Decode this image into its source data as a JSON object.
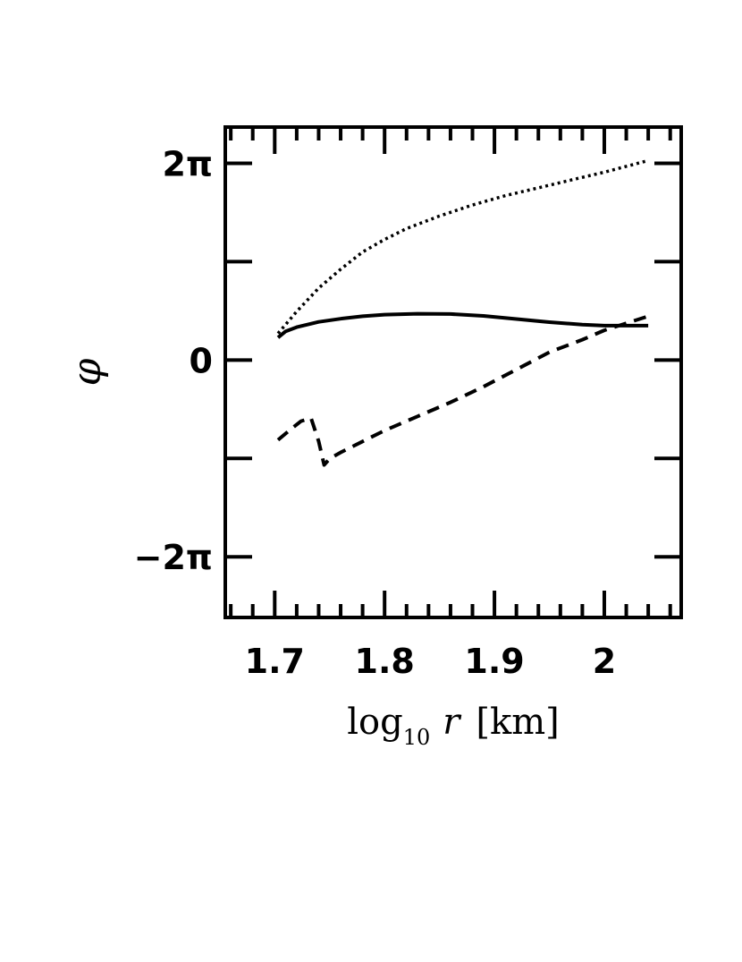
{
  "chart_data": {
    "type": "line",
    "xlabel": {
      "prefix": "log",
      "subscript": "10",
      "variable": "r",
      "unit": "[km]"
    },
    "ylabel": "φ",
    "xlim": [
      1.655,
      2.07
    ],
    "ylim": [
      -8.22,
      7.44
    ],
    "x_ticks": [
      {
        "value": 1.7,
        "label": "1.7"
      },
      {
        "value": 1.8,
        "label": "1.8"
      },
      {
        "value": 1.9,
        "label": "1.9"
      },
      {
        "value": 2.0,
        "label": "2"
      }
    ],
    "y_ticks": [
      {
        "value": -6.2832,
        "label": "−2π"
      },
      {
        "value": -3.1416,
        "label": ""
      },
      {
        "value": 0,
        "label": "0"
      },
      {
        "value": 3.1416,
        "label": ""
      },
      {
        "value": 6.2832,
        "label": "2π"
      }
    ],
    "series": [
      {
        "style": "dotted",
        "x": [
          1.703,
          1.72,
          1.74,
          1.76,
          1.78,
          1.8,
          1.82,
          1.85,
          1.88,
          1.91,
          1.94,
          1.97,
          2.0,
          2.04
        ],
        "y": [
          0.85,
          1.55,
          2.3,
          2.9,
          3.45,
          3.85,
          4.2,
          4.6,
          4.95,
          5.25,
          5.5,
          5.75,
          6.0,
          6.37
        ]
      },
      {
        "style": "solid",
        "x": [
          1.703,
          1.71,
          1.72,
          1.74,
          1.76,
          1.78,
          1.8,
          1.83,
          1.86,
          1.89,
          1.92,
          1.95,
          1.98,
          2.0,
          2.04
        ],
        "y": [
          0.72,
          0.92,
          1.05,
          1.22,
          1.32,
          1.4,
          1.45,
          1.48,
          1.47,
          1.41,
          1.31,
          1.21,
          1.13,
          1.1,
          1.1
        ]
      },
      {
        "style": "dashed",
        "x": [
          1.703,
          1.715,
          1.724,
          1.733,
          1.74,
          1.745,
          1.75,
          1.76,
          1.78,
          1.8,
          1.83,
          1.86,
          1.89,
          1.92,
          1.95,
          1.98,
          2.0,
          2.04
        ],
        "y": [
          -2.55,
          -2.2,
          -1.95,
          -1.85,
          -2.6,
          -3.35,
          -3.15,
          -2.95,
          -2.6,
          -2.25,
          -1.8,
          -1.35,
          -0.85,
          -0.3,
          0.25,
          0.65,
          0.95,
          1.4
        ]
      }
    ],
    "grid": false,
    "legend": "none"
  }
}
